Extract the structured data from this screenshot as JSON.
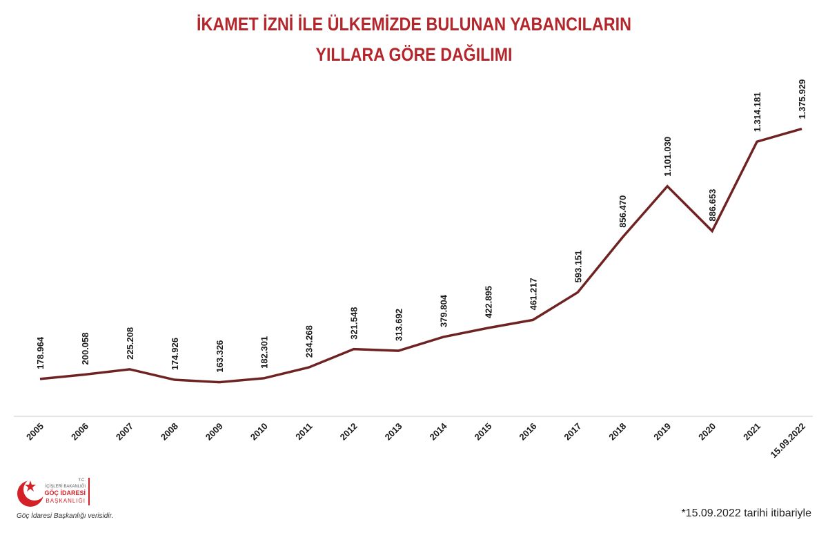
{
  "chart_data": {
    "type": "line",
    "title": [
      "İKAMET İZNİ İLE ÜLKEMİZDE BULUNAN YABANCILARIN",
      "YILLARA GÖRE DAĞILIMI"
    ],
    "categories": [
      "2005",
      "2006",
      "2007",
      "2008",
      "2009",
      "2010",
      "2011",
      "2012",
      "2013",
      "2014",
      "2015",
      "2016",
      "2017",
      "2018",
      "2019",
      "2020",
      "2021",
      "15.09.2022"
    ],
    "values": [
      178964,
      200058,
      225208,
      174926,
      163326,
      182301,
      234268,
      321548,
      313692,
      379804,
      422895,
      461217,
      593151,
      856470,
      1101030,
      886653,
      1314181,
      1375929
    ],
    "value_labels": [
      "178.964",
      "200.058",
      "225.208",
      "174.926",
      "163.326",
      "182.301",
      "234.268",
      "321.548",
      "313.692",
      "379.804",
      "422.895",
      "461.217",
      "593.151",
      "856.470",
      "1.101.030",
      "886.653",
      "1.314.181",
      "1.375.929"
    ],
    "color": "#6e2222",
    "ylim": [
      0,
      1500000
    ]
  },
  "footnote": "*15.09.2022 tarihi itibariyle",
  "logo": {
    "line1": "T.C.",
    "line2": "İÇİŞLERİ BAKANLIĞI",
    "line3": "GÖÇ İDARESİ",
    "line4": "BAŞKANLIĞI",
    "source": "Göç İdaresi Başkanlığı verisidir."
  }
}
